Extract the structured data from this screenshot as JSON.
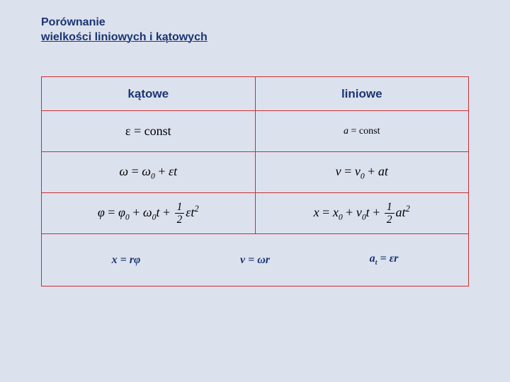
{
  "title": {
    "line1": "Porównanie",
    "line2": "wielkości liniowych i kątowych"
  },
  "table": {
    "headers": {
      "angular": "kątowe",
      "linear": "liniowe"
    },
    "rows": [
      {
        "angular_html": "<span class='upright'>&epsilon; = const</span>",
        "linear_html": "<span style='font-size:14px'>a <span class='upright'>= const</span></span>"
      },
      {
        "angular_html": "&omega; <span class='upright'>=</span> &omega;<span class='sub'>0</span> <span class='upright'>+</span> &epsilon;t",
        "linear_html": "v <span class='upright'>=</span> v<span class='sub'>0</span> <span class='upright'>+</span> at"
      },
      {
        "angular_html": "&phi; <span class='upright'>=</span> &phi;<span class='sub'>0</span> <span class='upright'>+</span> &omega;<span class='sub'>0</span>t <span class='upright'>+</span> <span class='frac'><span class='num'>1</span><span class='den'>2</span></span>&epsilon;t<span class='sup'>2</span>",
        "linear_html": "x <span class='upright'>=</span> x<span class='sub'>0</span> <span class='upright'>+</span> v<span class='sub'>0</span>t <span class='upright'>+</span> <span class='frac'><span class='num'>1</span><span class='den'>2</span></span>at<span class='sup'>2</span>"
      }
    ],
    "relations": {
      "r1": "x = r&phi;",
      "r2": "v = &omega;r",
      "r3": "a<span class='sub'>t</span> = &epsilon;r"
    }
  },
  "colors": {
    "background": "#dce1ee",
    "title_text": "#1b3573",
    "border": "#c73030",
    "formula_text": "#000000"
  }
}
